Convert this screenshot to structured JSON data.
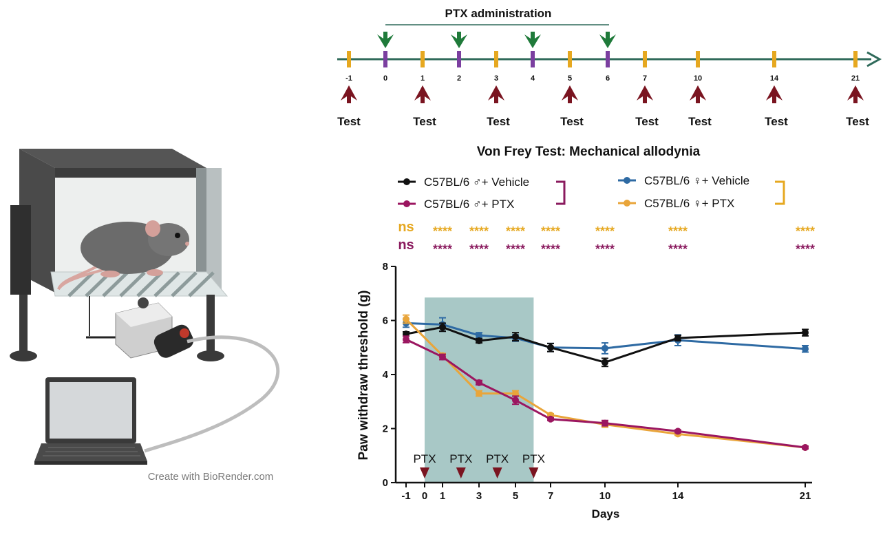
{
  "illustration": {
    "credit": "Create with BioRender.com",
    "apparatus_icons": [
      "mouse-icon",
      "mesh-platform-icon",
      "von-frey-device-icon",
      "laptop-icon"
    ]
  },
  "timeline": {
    "admin_label": "PTX administration",
    "days": [
      "-1",
      "0",
      "1",
      "2",
      "3",
      "4",
      "5",
      "6",
      "7",
      "10",
      "14",
      "21"
    ],
    "test_days": [
      "-1",
      "1",
      "3",
      "5",
      "7",
      "10",
      "14",
      "21"
    ],
    "admin_days": [
      "0",
      "2",
      "4",
      "6"
    ],
    "test_label": "Test",
    "colors": {
      "axis": "#2f6a5a",
      "test_tick": "#e6a820",
      "admin_tick": "#7b3fa0",
      "admin_arrow": "#1f7a3a",
      "test_arrow": "#7a1420"
    }
  },
  "chart_data": {
    "type": "line",
    "title": "Von Frey Test: Mechanical allodynia",
    "xlabel": "Days",
    "ylabel": "Paw withdraw threshold (g)",
    "ylim": [
      0,
      8
    ],
    "yticks": [
      "0",
      "2",
      "4",
      "6",
      "8"
    ],
    "xticks": [
      "-1",
      "0",
      "1",
      "3",
      "5",
      "7",
      "10",
      "14",
      "21"
    ],
    "x": [
      -1,
      1,
      3,
      5,
      7,
      10,
      14,
      21
    ],
    "series": [
      {
        "name": "C57BL/6 ♂+ Vehicle",
        "color": "#111111",
        "values": [
          5.5,
          5.75,
          5.25,
          5.4,
          5.0,
          4.45,
          5.35,
          5.55
        ],
        "errors": [
          0.08,
          0.15,
          0.08,
          0.15,
          0.15,
          0.15,
          0.1,
          0.12
        ]
      },
      {
        "name": "C57BL/6 ♂+ PTX",
        "color": "#9b1660",
        "values": [
          5.3,
          4.65,
          3.7,
          3.05,
          2.35,
          2.2,
          1.9,
          1.3
        ],
        "errors": [
          0.12,
          0.1,
          0.08,
          0.15,
          0.05,
          0.1,
          0.05,
          0.05
        ]
      },
      {
        "name": "C57BL/6 ♀+ Vehicle",
        "color": "#2e6aa3",
        "values": [
          5.9,
          5.85,
          5.45,
          5.35,
          5.0,
          4.97,
          5.27,
          4.95
        ],
        "errors": [
          0.15,
          0.25,
          0.1,
          0.12,
          0.15,
          0.2,
          0.2,
          0.12
        ]
      },
      {
        "name": "C57BL/6 ♀+ PTX",
        "color": "#e9a53a",
        "values": [
          6.05,
          4.7,
          3.3,
          3.3,
          2.5,
          2.15,
          1.8,
          1.3
        ],
        "errors": [
          0.15,
          0.08,
          0.1,
          0.1,
          0.05,
          0.1,
          0.05,
          0.05
        ]
      }
    ],
    "shaded_region": {
      "x_from": 0,
      "x_to": 6,
      "y_to": 6.85,
      "color": "#a8c8c6"
    },
    "ptx_markers": {
      "label": "PTX",
      "x": [
        0,
        2,
        4,
        6
      ],
      "color": "#7a1420"
    },
    "significance": {
      "female": {
        "color": "#e6a820",
        "bracket_color": "#e6a820",
        "labels": [
          "ns",
          "****",
          "****",
          "****",
          "****",
          "****",
          "****",
          "****"
        ]
      },
      "male": {
        "color": "#8a1a5e",
        "bracket_color": "#8a1a5e",
        "labels": [
          "ns",
          "****",
          "****",
          "****",
          "****",
          "****",
          "****",
          "****"
        ]
      }
    },
    "legend_placement": "top"
  }
}
